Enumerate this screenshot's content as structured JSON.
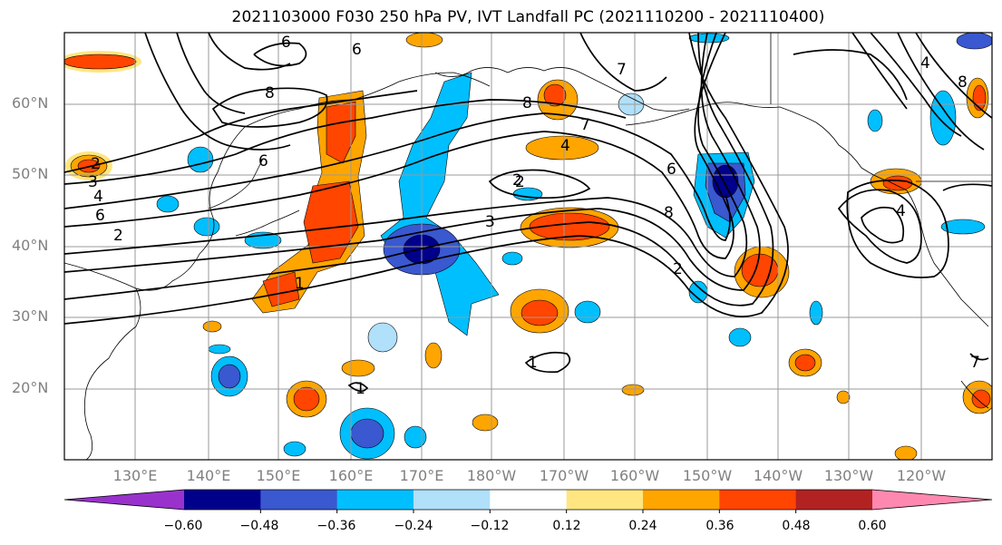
{
  "title": "2021103000 F030 250 hPa PV, IVT Landfall PC (2021110200 - 2021110400)",
  "lat_labels": [
    "60°N",
    "50°N",
    "40°N",
    "30°N",
    "20°N"
  ],
  "lon_labels": [
    "130°E",
    "140°E",
    "150°E",
    "160°E",
    "170°E",
    "180°W",
    "170°W",
    "160°W",
    "150°W",
    "140°W",
    "130°W",
    "120°W"
  ],
  "contour_labels": [
    "6",
    "6",
    "8",
    "6",
    "2",
    "3",
    "4",
    "6",
    "2",
    "1",
    "8",
    "7",
    "4",
    "2",
    "3",
    "6",
    "8",
    "7",
    "4",
    "8",
    "2",
    "1",
    "1",
    "7",
    "4",
    "2"
  ],
  "colorbar": {
    "ticks": [
      "−0.60",
      "−0.48",
      "−0.36",
      "−0.24",
      "−0.12",
      "0.12",
      "0.24",
      "0.36",
      "0.48",
      "0.60"
    ],
    "colors": [
      "#9932cc",
      "#00008b",
      "#3a58cf",
      "#00bfff",
      "#b0e0fa",
      "#ffffff",
      "#ffe680",
      "#ffa500",
      "#ff4500",
      "#b22222",
      "#ff88b0"
    ]
  }
}
